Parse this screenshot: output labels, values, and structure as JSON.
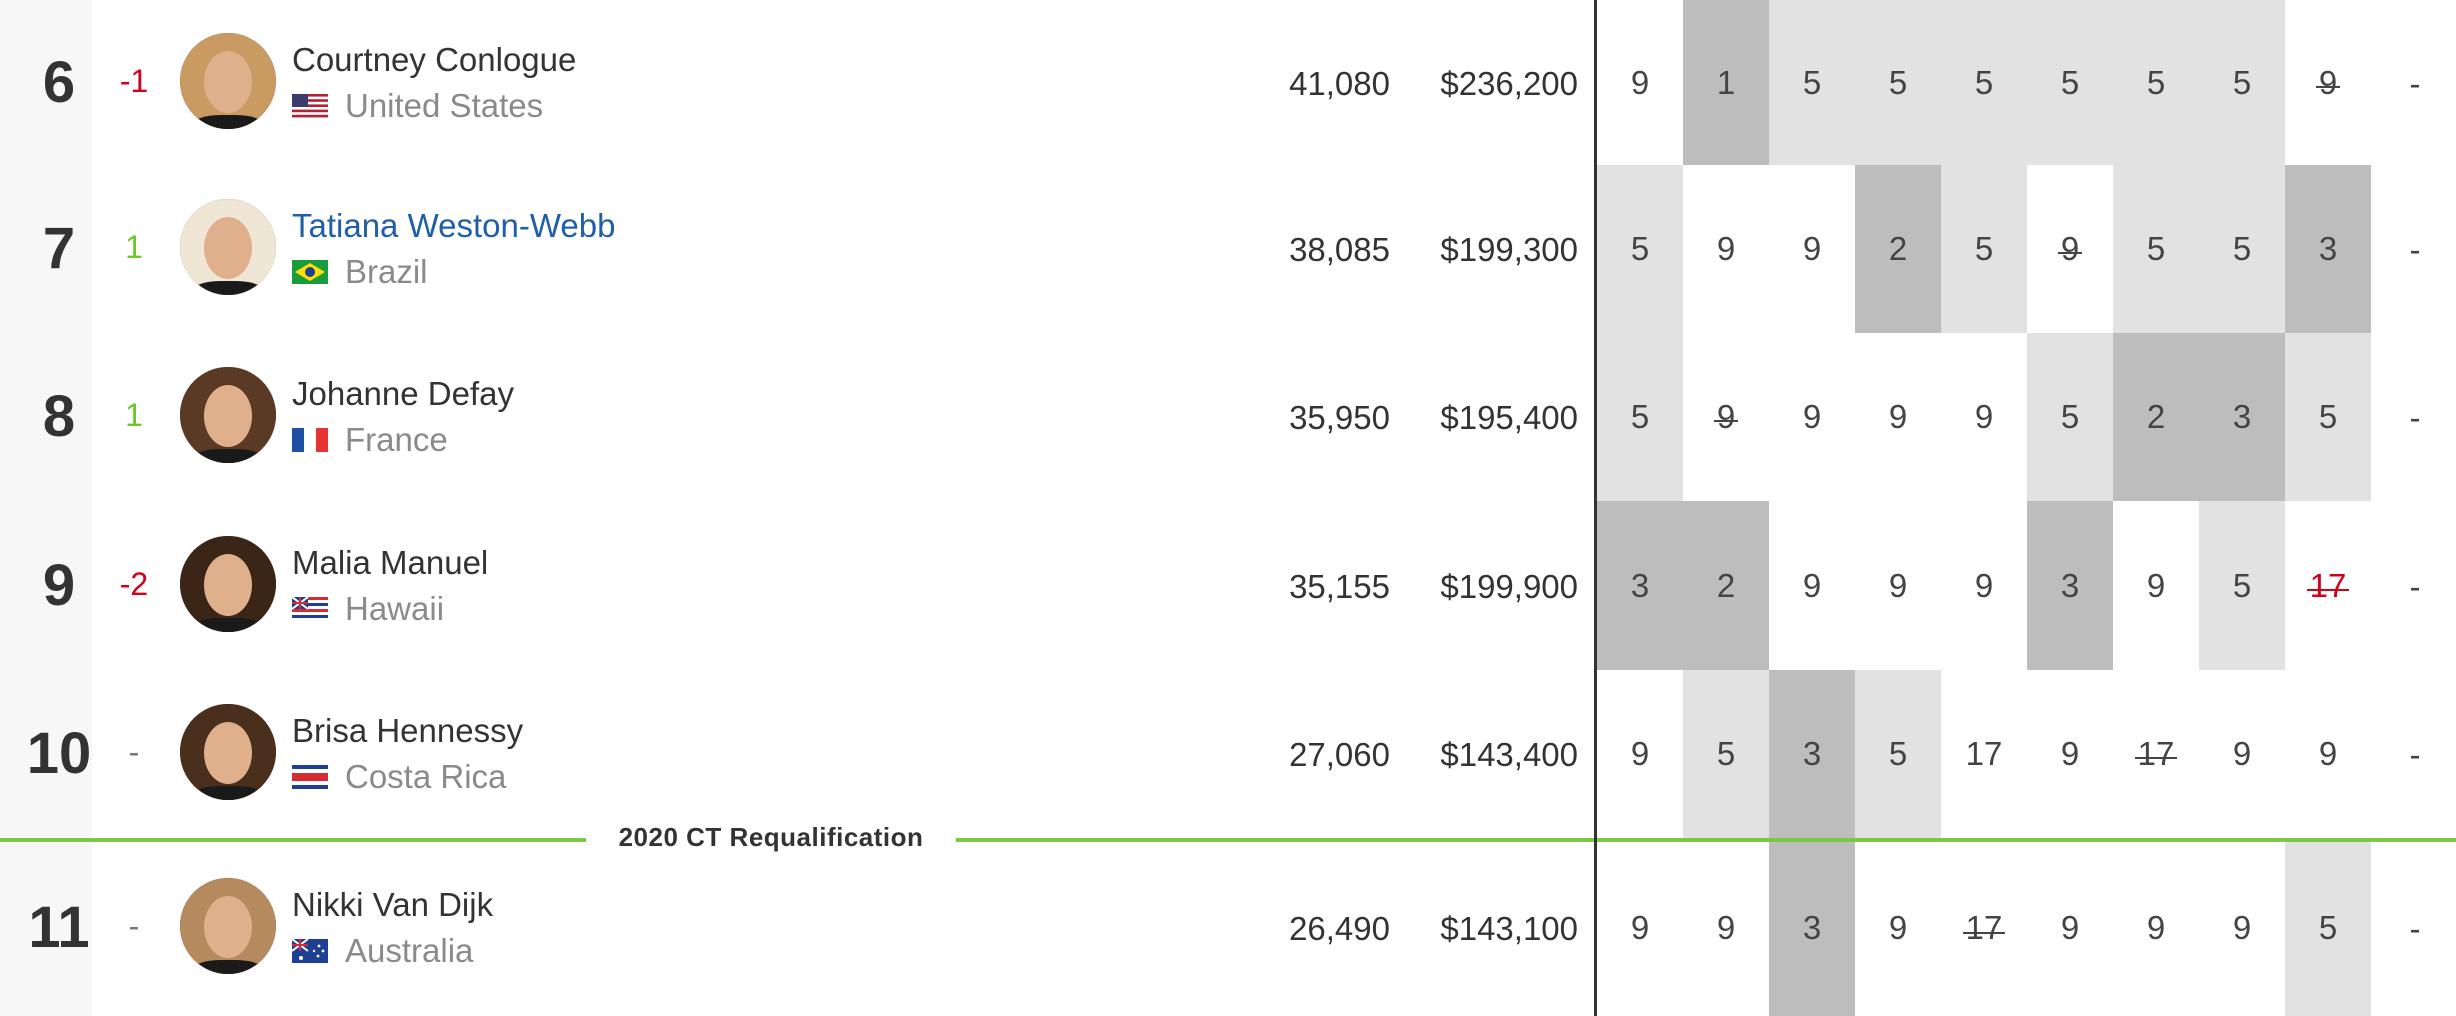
{
  "requalification_label": "2020 CT Requalification",
  "rows": [
    {
      "rank": "6",
      "change": "-1",
      "trend": "down",
      "name": "Courtney Conlogue",
      "linked": false,
      "country": "United States",
      "flag": "us-flag",
      "points": "41,080",
      "prize": "$236,200",
      "results": [
        {
          "v": "9",
          "s": 0
        },
        {
          "v": "1",
          "s": 2
        },
        {
          "v": "5",
          "s": 1
        },
        {
          "v": "5",
          "s": 1
        },
        {
          "v": "5",
          "s": 1
        },
        {
          "v": "5",
          "s": 1
        },
        {
          "v": "5",
          "s": 1
        },
        {
          "v": "5",
          "s": 1
        },
        {
          "v": "9",
          "s": 0,
          "drop": true
        }
      ],
      "last": "-"
    },
    {
      "rank": "7",
      "change": "1",
      "trend": "up",
      "name": "Tatiana Weston-Webb",
      "linked": true,
      "country": "Brazil",
      "flag": "brazil-flag",
      "points": "38,085",
      "prize": "$199,300",
      "results": [
        {
          "v": "5",
          "s": 1
        },
        {
          "v": "9",
          "s": 0
        },
        {
          "v": "9",
          "s": 0
        },
        {
          "v": "2",
          "s": 2
        },
        {
          "v": "5",
          "s": 1
        },
        {
          "v": "9",
          "s": 0,
          "drop": true
        },
        {
          "v": "5",
          "s": 1
        },
        {
          "v": "5",
          "s": 1
        },
        {
          "v": "3",
          "s": 2
        }
      ],
      "last": "-"
    },
    {
      "rank": "8",
      "change": "1",
      "trend": "up",
      "name": "Johanne Defay",
      "linked": false,
      "country": "France",
      "flag": "france-flag",
      "points": "35,950",
      "prize": "$195,400",
      "results": [
        {
          "v": "5",
          "s": 1
        },
        {
          "v": "9",
          "s": 0,
          "drop": true
        },
        {
          "v": "9",
          "s": 0
        },
        {
          "v": "9",
          "s": 0
        },
        {
          "v": "9",
          "s": 0
        },
        {
          "v": "5",
          "s": 1
        },
        {
          "v": "2",
          "s": 2
        },
        {
          "v": "3",
          "s": 2
        },
        {
          "v": "5",
          "s": 1
        }
      ],
      "last": "-"
    },
    {
      "rank": "9",
      "change": "-2",
      "trend": "down",
      "name": "Malia Manuel",
      "linked": false,
      "country": "Hawaii",
      "flag": "hawaii-flag",
      "points": "35,155",
      "prize": "$199,900",
      "results": [
        {
          "v": "3",
          "s": 2
        },
        {
          "v": "2",
          "s": 2
        },
        {
          "v": "9",
          "s": 0
        },
        {
          "v": "9",
          "s": 0
        },
        {
          "v": "9",
          "s": 0
        },
        {
          "v": "3",
          "s": 2
        },
        {
          "v": "9",
          "s": 0
        },
        {
          "v": "5",
          "s": 1
        },
        {
          "v": "17",
          "s": 0,
          "drop": true,
          "red": true
        }
      ],
      "last": "-"
    },
    {
      "rank": "10",
      "change": "-",
      "trend": "none",
      "name": "Brisa Hennessy",
      "linked": false,
      "country": "Costa Rica",
      "flag": "costa-rica-flag",
      "points": "27,060",
      "prize": "$143,400",
      "results": [
        {
          "v": "9",
          "s": 0
        },
        {
          "v": "5",
          "s": 1
        },
        {
          "v": "3",
          "s": 2
        },
        {
          "v": "5",
          "s": 1
        },
        {
          "v": "17",
          "s": 0
        },
        {
          "v": "9",
          "s": 0
        },
        {
          "v": "17",
          "s": 0,
          "drop": true
        },
        {
          "v": "9",
          "s": 0
        },
        {
          "v": "9",
          "s": 0
        }
      ],
      "last": "-"
    },
    {
      "rank": "11",
      "change": "-",
      "trend": "none",
      "name": "Nikki Van Dijk",
      "linked": false,
      "country": "Australia",
      "flag": "australia-flag",
      "points": "26,490",
      "prize": "$143,100",
      "results": [
        {
          "v": "9",
          "s": 0
        },
        {
          "v": "9",
          "s": 0
        },
        {
          "v": "3",
          "s": 2
        },
        {
          "v": "9",
          "s": 0
        },
        {
          "v": "17",
          "s": 0,
          "drop": true
        },
        {
          "v": "9",
          "s": 0
        },
        {
          "v": "9",
          "s": 0
        },
        {
          "v": "9",
          "s": 0
        },
        {
          "v": "5",
          "s": 1
        }
      ],
      "last": "-"
    }
  ]
}
